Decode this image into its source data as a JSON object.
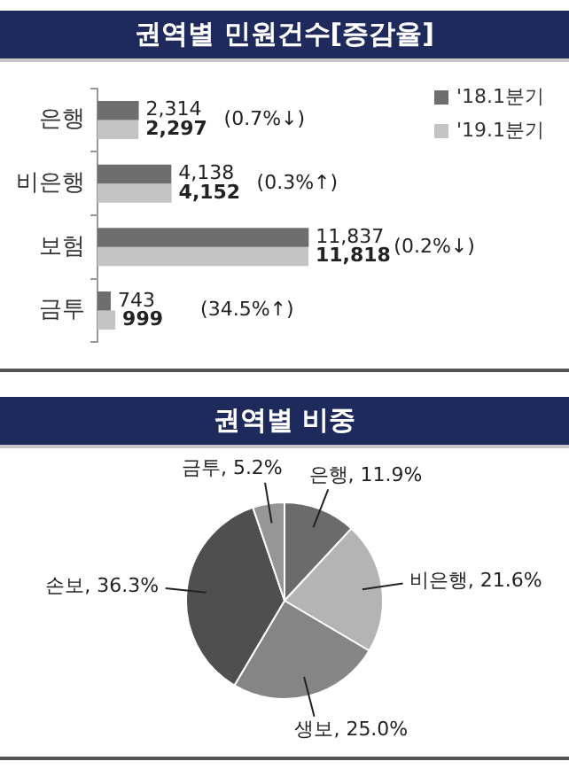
{
  "chart_data": [
    {
      "type": "bar",
      "title": "권역별 민원건수[증감율]",
      "orientation": "horizontal",
      "categories": [
        "은행",
        "비은행",
        "보험",
        "금투"
      ],
      "series": [
        {
          "name": "'18.1분기",
          "color": "#6e6e6e",
          "values": [
            2314,
            4138,
            11837,
            743
          ],
          "value_labels": [
            "2,314",
            "4,138",
            "11,837",
            "743"
          ]
        },
        {
          "name": "'19.1분기",
          "color": "#c4c4c4",
          "values": [
            2297,
            4152,
            11818,
            999
          ],
          "value_labels": [
            "2,297",
            "4,152",
            "11,818",
            "999"
          ]
        }
      ],
      "legend": "top right",
      "grid": false,
      "annotations": [
        "(0.7%↓)",
        "(0.3%↑)",
        "(0.2%↓)",
        "(34.5%↑)"
      ]
    },
    {
      "type": "pie",
      "title": "권역별 비중",
      "categories": [
        "은행",
        "비은행",
        "생보",
        "손보",
        "금투"
      ],
      "values": [
        11.9,
        21.6,
        25.0,
        36.3,
        5.2
      ],
      "colors": [
        "#6b6b6b",
        "#b4b4b4",
        "#858585",
        "#4f4f4f",
        "#969696"
      ],
      "value_labels": [
        "11.9%",
        "21.6%",
        "25.0%",
        "36.3%",
        "5.2%"
      ],
      "legend": false
    }
  ]
}
